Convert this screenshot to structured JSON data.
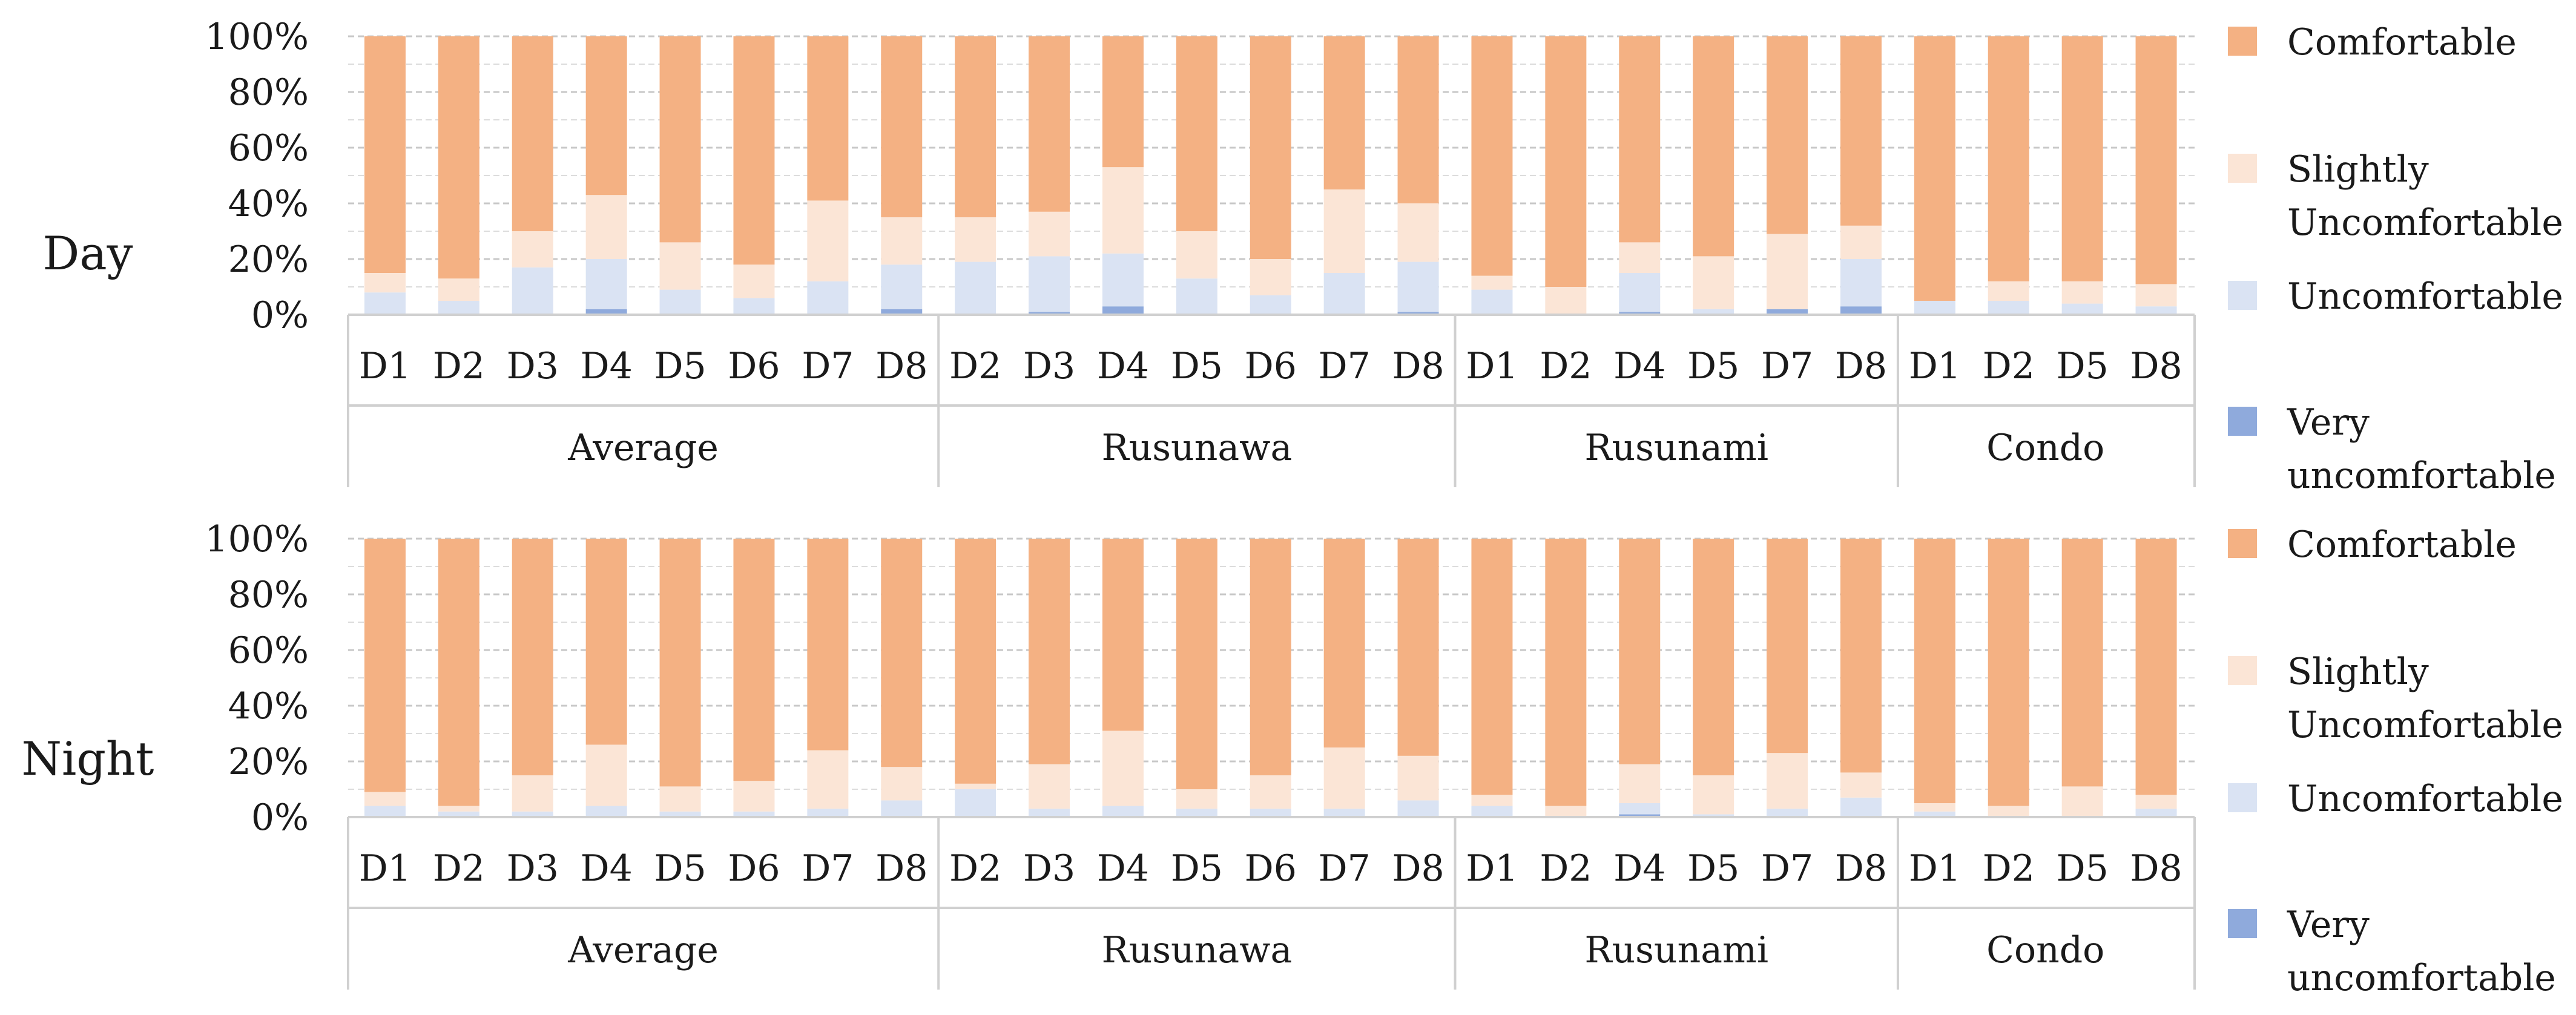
{
  "chart_data": [
    {
      "type": "bar",
      "stacked": true,
      "percent": true,
      "row_label": "Day",
      "yaxis_ticks": [
        "0%",
        "20%",
        "40%",
        "60%",
        "80%",
        "100%"
      ],
      "ylim": [
        0,
        100
      ],
      "groups": [
        {
          "name": "Average",
          "categories": [
            "D1",
            "D2",
            "D3",
            "D4",
            "D5",
            "D6",
            "D7",
            "D8"
          ]
        },
        {
          "name": "Rusunawa",
          "categories": [
            "D2",
            "D3",
            "D4",
            "D5",
            "D6",
            "D7",
            "D8"
          ]
        },
        {
          "name": "Rusunami",
          "categories": [
            "D1",
            "D2",
            "D4",
            "D5",
            "D7",
            "D8"
          ]
        },
        {
          "name": "Condo",
          "categories": [
            "D1",
            "D2",
            "D5",
            "D8"
          ]
        }
      ],
      "series": [
        {
          "name": "Very uncomfortable",
          "color": "#8faadc",
          "values": [
            0,
            0,
            0,
            2,
            0,
            0,
            0,
            2,
            0,
            1,
            3,
            0,
            0,
            0,
            1,
            0,
            0,
            1,
            0,
            2,
            3,
            0,
            0,
            0,
            0
          ]
        },
        {
          "name": "Uncomfortable",
          "color": "#dae3f3",
          "values": [
            8,
            5,
            17,
            18,
            9,
            6,
            12,
            16,
            19,
            20,
            19,
            13,
            7,
            15,
            18,
            9,
            0,
            14,
            2,
            0,
            17,
            5,
            5,
            4,
            3
          ]
        },
        {
          "name": "Slightly Uncomfortable",
          "color": "#fbe5d6",
          "values": [
            7,
            8,
            13,
            23,
            17,
            12,
            29,
            17,
            16,
            16,
            31,
            17,
            13,
            30,
            21,
            5,
            10,
            11,
            19,
            27,
            12,
            0,
            7,
            8,
            8
          ]
        },
        {
          "name": "Comfortable",
          "color": "#f4b183",
          "values": [
            85,
            87,
            70,
            57,
            74,
            82,
            59,
            65,
            65,
            63,
            47,
            70,
            80,
            55,
            60,
            86,
            90,
            74,
            79,
            71,
            68,
            95,
            88,
            88,
            89
          ]
        }
      ],
      "legend": {
        "position": "right",
        "entries": [
          "Comfortable",
          "Slightly Uncomfortable",
          "Uncomfortable",
          "Very uncomfortable"
        ]
      },
      "grid": true
    },
    {
      "type": "bar",
      "stacked": true,
      "percent": true,
      "row_label": "Night",
      "yaxis_ticks": [
        "0%",
        "20%",
        "40%",
        "60%",
        "80%",
        "100%"
      ],
      "ylim": [
        0,
        100
      ],
      "groups": [
        {
          "name": "Average",
          "categories": [
            "D1",
            "D2",
            "D3",
            "D4",
            "D5",
            "D6",
            "D7",
            "D8"
          ]
        },
        {
          "name": "Rusunawa",
          "categories": [
            "D2",
            "D3",
            "D4",
            "D5",
            "D6",
            "D7",
            "D8"
          ]
        },
        {
          "name": "Rusunami",
          "categories": [
            "D1",
            "D2",
            "D4",
            "D5",
            "D7",
            "D8"
          ]
        },
        {
          "name": "Condo",
          "categories": [
            "D1",
            "D2",
            "D5",
            "D8"
          ]
        }
      ],
      "series": [
        {
          "name": "Very uncomfortable",
          "color": "#8faadc",
          "values": [
            0,
            0,
            0,
            0,
            0,
            0,
            0,
            0,
            0,
            0,
            0,
            0,
            0,
            0,
            0,
            0,
            0,
            1,
            0,
            0,
            0,
            0,
            0,
            0,
            0
          ]
        },
        {
          "name": "Uncomfortable",
          "color": "#dae3f3",
          "values": [
            4,
            2,
            2,
            4,
            2,
            2,
            3,
            6,
            10,
            3,
            4,
            3,
            3,
            3,
            6,
            4,
            0,
            4,
            1,
            3,
            7,
            2,
            0,
            0,
            3
          ]
        },
        {
          "name": "Slightly Uncomfortable",
          "color": "#fbe5d6",
          "values": [
            5,
            2,
            13,
            22,
            9,
            11,
            21,
            12,
            2,
            16,
            27,
            7,
            12,
            22,
            16,
            4,
            4,
            14,
            14,
            20,
            9,
            3,
            4,
            11,
            5
          ]
        },
        {
          "name": "Comfortable",
          "color": "#f4b183",
          "values": [
            91,
            96,
            85,
            74,
            89,
            87,
            76,
            82,
            88,
            81,
            69,
            90,
            85,
            75,
            78,
            92,
            96,
            81,
            85,
            77,
            84,
            95,
            96,
            89,
            92
          ]
        }
      ],
      "legend": {
        "position": "right",
        "entries": [
          "Comfortable",
          "Slightly Uncomfortable",
          "Uncomfortable",
          "Very uncomfortable"
        ]
      },
      "grid": true
    }
  ],
  "legend_labels": {
    "comfortable": "Comfortable",
    "slightly_line1": "Slightly",
    "slightly_line2": "Uncomfortable",
    "uncomfortable": "Uncomfortable",
    "very_line1": "Very",
    "very_line2": "uncomfortable"
  },
  "colors": {
    "comfortable": "#f4b183",
    "slightly": "#fbe5d6",
    "uncomfortable": "#dae3f3",
    "very": "#8faadc",
    "grid": "#c8c8c8",
    "axis": "#d0d0d0"
  }
}
